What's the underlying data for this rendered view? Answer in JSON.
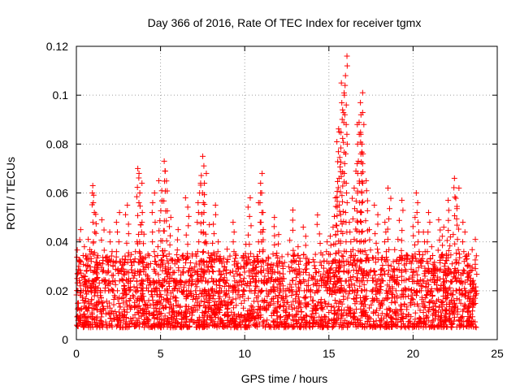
{
  "chart_data": {
    "type": "scatter",
    "title": "Day 366 of 2016, Rate Of TEC Index for receiver tgmx",
    "xlabel": "GPS time / hours",
    "ylabel": "ROTI / TECUs",
    "xlim": [
      0,
      25
    ],
    "ylim": [
      0,
      0.12
    ],
    "xticks": [
      0,
      5,
      10,
      15,
      20,
      25
    ],
    "yticks": [
      0,
      0.02,
      0.04,
      0.06,
      0.08,
      0.1,
      0.12
    ],
    "xtick_labels": [
      "0",
      "5",
      "10",
      "15",
      "20",
      "25"
    ],
    "ytick_labels": [
      "0",
      "0.02",
      "0.04",
      "0.06",
      "0.08",
      "0.1",
      "0.12"
    ],
    "grid": true,
    "marker": "plus",
    "color": "#ff0000",
    "series": [
      {
        "name": "ROTI",
        "x": [
          0.1,
          0.15,
          0.2,
          0.3,
          0.4,
          0.5,
          0.6,
          0.8,
          1.0,
          1.05,
          1.1,
          1.2,
          1.3,
          1.6,
          1.8,
          2.0,
          2.2,
          2.5,
          2.8,
          3.0,
          3.2,
          3.5,
          3.7,
          3.8,
          3.9,
          4.0,
          4.3,
          4.6,
          4.8,
          5.0,
          5.2,
          5.3,
          5.5,
          5.8,
          6.0,
          6.3,
          6.6,
          7.0,
          7.3,
          7.5,
          7.6,
          7.8,
          8.0,
          8.2,
          8.5,
          8.8,
          9.0,
          9.3,
          9.6,
          10.0,
          10.3,
          10.6,
          10.9,
          11.0,
          11.2,
          11.5,
          11.8,
          12.0,
          12.4,
          12.8,
          13.2,
          13.6,
          14.0,
          14.4,
          14.8,
          15.0,
          15.2,
          15.4,
          15.5,
          15.6,
          15.7,
          15.8,
          16.0,
          16.2,
          16.5,
          16.7,
          16.8,
          16.9,
          17.0,
          17.2,
          17.5,
          17.8,
          18.0,
          18.3,
          18.6,
          19.0,
          19.3,
          19.6,
          20.0,
          20.3,
          20.6,
          20.9,
          21.2,
          21.5,
          21.8,
          22.0,
          22.3,
          22.5,
          22.6,
          22.8,
          23.0,
          23.2,
          23.4,
          23.6
        ],
        "y": [
          0.03,
          0.045,
          0.012,
          0.022,
          0.038,
          0.015,
          0.028,
          0.041,
          0.06,
          0.063,
          0.035,
          0.018,
          0.025,
          0.049,
          0.032,
          0.044,
          0.02,
          0.052,
          0.029,
          0.055,
          0.016,
          0.04,
          0.07,
          0.068,
          0.047,
          0.033,
          0.026,
          0.06,
          0.038,
          0.065,
          0.073,
          0.069,
          0.05,
          0.031,
          0.045,
          0.024,
          0.058,
          0.035,
          0.064,
          0.075,
          0.068,
          0.047,
          0.03,
          0.055,
          0.04,
          0.027,
          0.037,
          0.048,
          0.022,
          0.039,
          0.058,
          0.034,
          0.06,
          0.068,
          0.045,
          0.028,
          0.05,
          0.043,
          0.03,
          0.053,
          0.038,
          0.046,
          0.025,
          0.051,
          0.04,
          0.035,
          0.046,
          0.058,
          0.066,
          0.085,
          0.094,
          0.105,
          0.116,
          0.048,
          0.062,
          0.073,
          0.092,
          0.101,
          0.088,
          0.065,
          0.045,
          0.055,
          0.037,
          0.048,
          0.062,
          0.041,
          0.057,
          0.033,
          0.05,
          0.06,
          0.044,
          0.052,
          0.038,
          0.049,
          0.046,
          0.057,
          0.042,
          0.066,
          0.062,
          0.035,
          0.048,
          0.034,
          0.028,
          0.041
        ]
      }
    ],
    "baseline_band": {
      "x_range": [
        0,
        23.8
      ],
      "y_range": [
        0.005,
        0.035
      ]
    }
  }
}
